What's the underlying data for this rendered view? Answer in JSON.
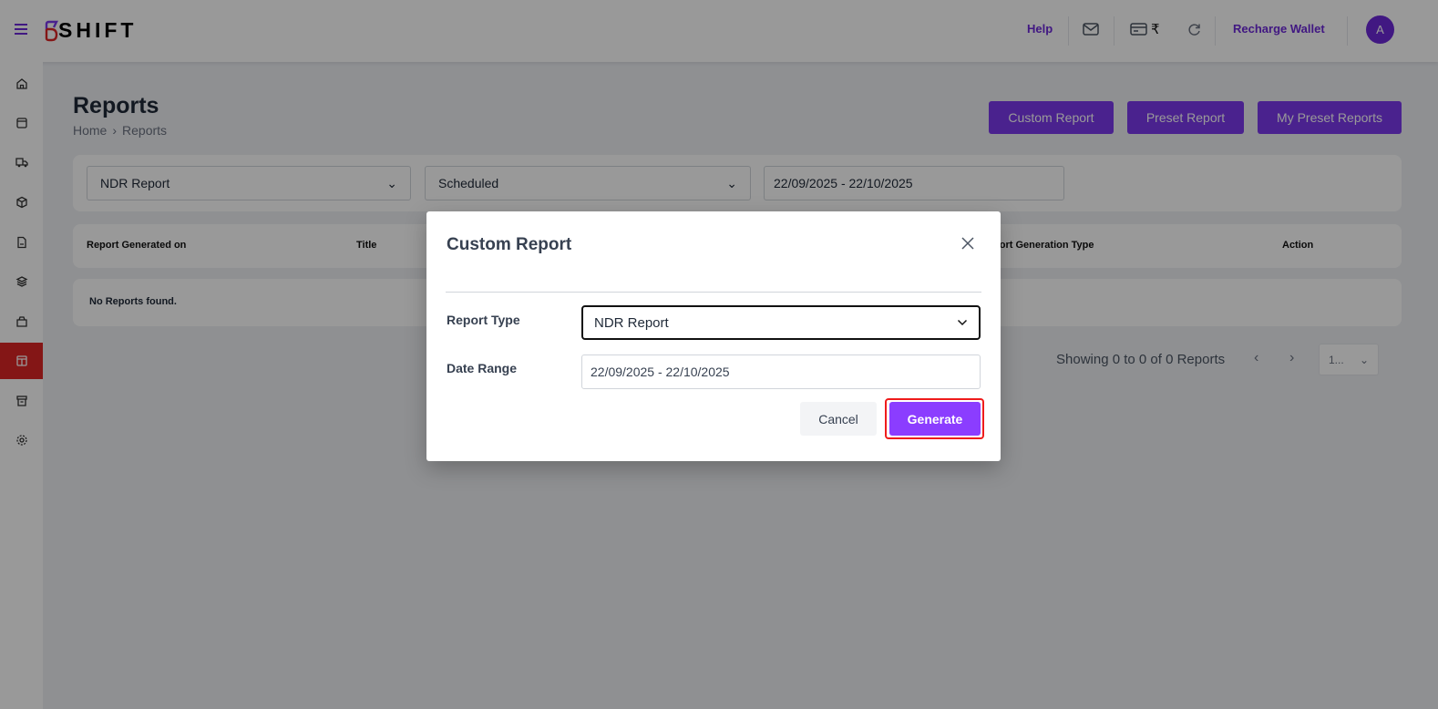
{
  "header": {
    "brand": "SHIFT",
    "help": "Help",
    "currency_symbol": "₹",
    "recharge": "Recharge Wallet",
    "avatar": "A",
    "accent": "#6d28d9"
  },
  "sidebar": {
    "items": [
      "home-icon",
      "orders-icon",
      "truck-icon",
      "package-icon",
      "document-icon",
      "layers-icon",
      "bag-icon",
      "reports-icon",
      "archive-icon",
      "settings-icon"
    ],
    "active_index": 7,
    "active_color": "#dc2626"
  },
  "page": {
    "title": "Reports",
    "breadcrumb": [
      "Home",
      "Reports"
    ],
    "buttons": [
      "Custom Report",
      "Preset Report",
      "My Preset Reports"
    ]
  },
  "filters": {
    "report_type": "NDR Report",
    "status": "Scheduled",
    "date_range": "22/09/2025 - 22/10/2025"
  },
  "table": {
    "columns": [
      "Report Generated on",
      "Title",
      "Report Generation Type",
      "Action"
    ],
    "empty": "No Reports found."
  },
  "pagination": {
    "summary": "Showing 0 to 0 of 0 Reports",
    "page_size": "1..."
  },
  "modal": {
    "title": "Custom Report",
    "report_type_label": "Report Type",
    "report_type_value": "NDR Report",
    "date_range_label": "Date Range",
    "date_range_value": "22/09/2025 - 22/10/2025",
    "cancel": "Cancel",
    "generate": "Generate",
    "generate_color": "#8b3dff"
  }
}
